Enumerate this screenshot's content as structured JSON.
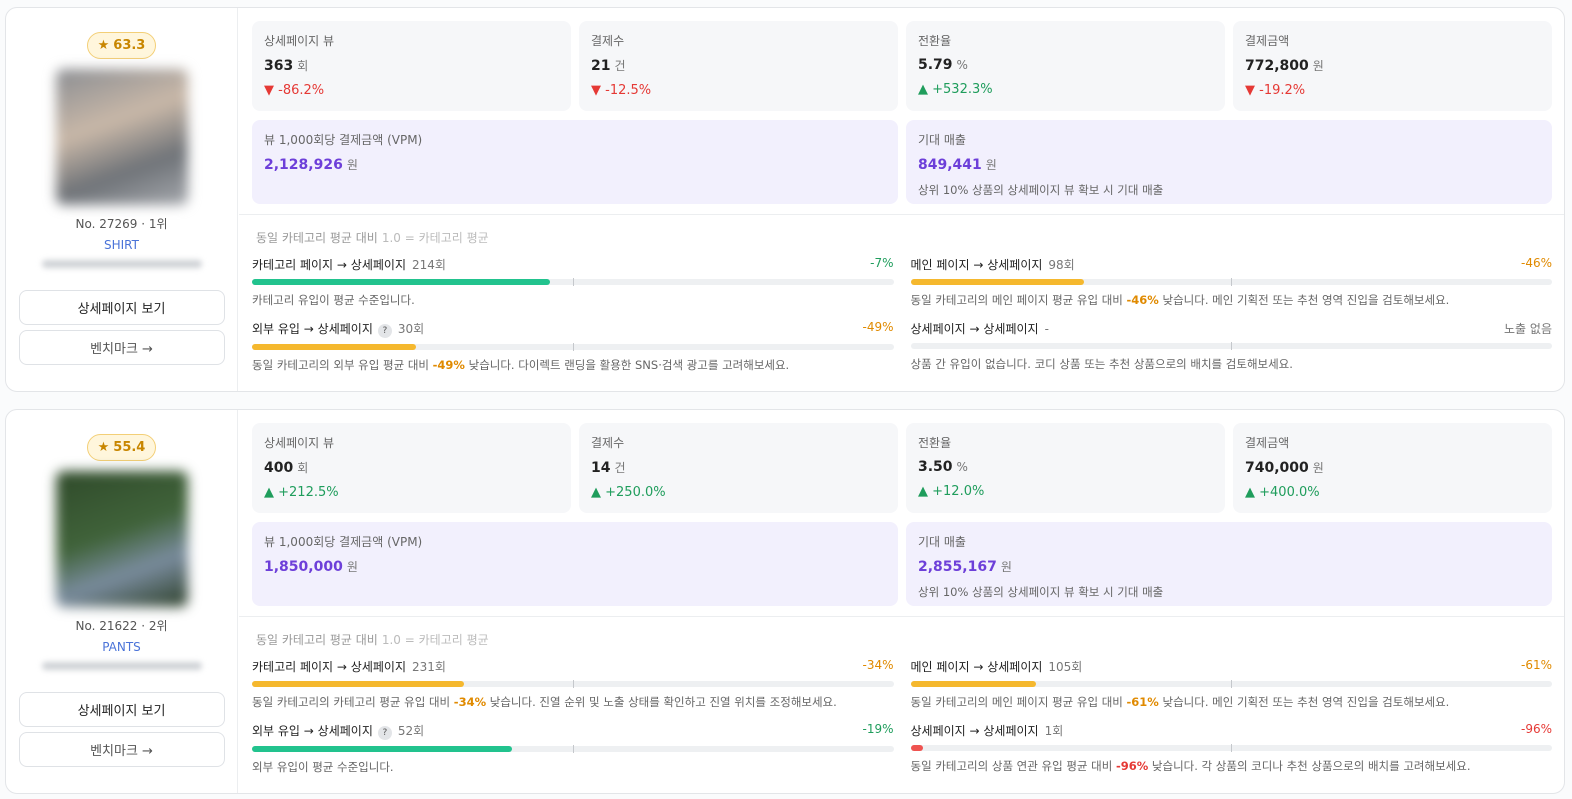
{
  "section_title": "동일 카테고리 평균 대비",
  "section_note": "1.0 = 카테고리 평균",
  "detail_button": "상세페이지 보기",
  "benchmark_button": "벤치마크 →",
  "products": [
    {
      "score": "63.3",
      "no": "No. 27269 · 1위",
      "category": "SHIRT",
      "metrics": [
        {
          "label": "상세페이지 뷰",
          "value": "363",
          "unit": "회",
          "change": "-86.2%",
          "trend": "down"
        },
        {
          "label": "결제수",
          "value": "21",
          "unit": "건",
          "change": "-12.5%",
          "trend": "down"
        },
        {
          "label": "전환율",
          "value": "5.79",
          "unit": "%",
          "change": "+532.3%",
          "trend": "up"
        },
        {
          "label": "결제금액",
          "value": "772,800",
          "unit": "원",
          "change": "-19.2%",
          "trend": "down"
        }
      ],
      "vpm": {
        "label": "뷰 1,000회당 결제금액 (VPM)",
        "value": "2,128,926",
        "unit": "원"
      },
      "expected": {
        "label": "기대 매출",
        "value": "849,441",
        "unit": "원",
        "note": "상위 10% 상품의 상세페이지 뷰 확보 시 기대 매출"
      },
      "flows": [
        {
          "name": "카테고리 페이지 → 상세페이지",
          "count": "214회",
          "diff": -7,
          "diff_label": "-7%",
          "color": "#22c38e",
          "msg": [
            {
              "text": "카테고리 유입이 평균 수준입니다."
            }
          ]
        },
        {
          "name": "메인 페이지 → 상세페이지",
          "count": "98회",
          "diff": -46,
          "diff_label": "-46%",
          "color": "#f5b82e",
          "msg": [
            {
              "text": "동일 카테고리의 메인 페이지 평균 유입 대비 "
            },
            {
              "text": "-46%",
              "em": true
            },
            {
              "text": " 낮습니다. 메인 기획전 또는 추천 영역 진입을 검토해보세요."
            }
          ]
        },
        {
          "name": "외부 유입 → 상세페이지",
          "help": "?",
          "count": "30회",
          "diff": -49,
          "diff_label": "-49%",
          "color": "#f5b82e",
          "msg": [
            {
              "text": "동일 카테고리의 외부 유입 평균 대비 "
            },
            {
              "text": "-49%",
              "em": true
            },
            {
              "text": " 낮습니다. 다이렉트 랜딩을 활용한 SNS·검색 광고를 고려해보세요."
            }
          ]
        },
        {
          "name": "상세페이지 → 상세페이지",
          "count": "-",
          "diff": null,
          "diff_label": "노출 없음",
          "color": "#888888",
          "msg": [
            {
              "text": "상품 간 유입이 없습니다. 코디 상품 또는 추천 상품으로의 배치를 검토해보세요."
            }
          ]
        }
      ]
    },
    {
      "score": "55.4",
      "no": "No. 21622 · 2위",
      "category": "PANTS",
      "metrics": [
        {
          "label": "상세페이지 뷰",
          "value": "400",
          "unit": "회",
          "change": "+212.5%",
          "trend": "up"
        },
        {
          "label": "결제수",
          "value": "14",
          "unit": "건",
          "change": "+250.0%",
          "trend": "up"
        },
        {
          "label": "전환율",
          "value": "3.50",
          "unit": "%",
          "change": "+12.0%",
          "trend": "up"
        },
        {
          "label": "결제금액",
          "value": "740,000",
          "unit": "원",
          "change": "+400.0%",
          "trend": "up"
        }
      ],
      "vpm": {
        "label": "뷰 1,000회당 결제금액 (VPM)",
        "value": "1,850,000",
        "unit": "원"
      },
      "expected": {
        "label": "기대 매출",
        "value": "2,855,167",
        "unit": "원",
        "note": "상위 10% 상품의 상세페이지 뷰 확보 시 기대 매출"
      },
      "flows": [
        {
          "name": "카테고리 페이지 → 상세페이지",
          "count": "231회",
          "diff": -34,
          "diff_label": "-34%",
          "color": "#f5b82e",
          "msg": [
            {
              "text": "동일 카테고리의 카테고리 평균 유입 대비 "
            },
            {
              "text": "-34%",
              "em": true
            },
            {
              "text": " 낮습니다. 진열 순위 및 노출 상태를 확인하고 진열 위치를 조정해보세요."
            }
          ]
        },
        {
          "name": "메인 페이지 → 상세페이지",
          "count": "105회",
          "diff": -61,
          "diff_label": "-61%",
          "color": "#f5b82e",
          "msg": [
            {
              "text": "동일 카테고리의 메인 페이지 평균 유입 대비 "
            },
            {
              "text": "-61%",
              "em": true
            },
            {
              "text": " 낮습니다. 메인 기획전 또는 추천 영역 진입을 검토해보세요."
            }
          ]
        },
        {
          "name": "외부 유입 → 상세페이지",
          "help": "?",
          "count": "52회",
          "diff": -19,
          "diff_label": "-19%",
          "color": "#22c38e",
          "msg": [
            {
              "text": "외부 유입이 평균 수준입니다."
            }
          ]
        },
        {
          "name": "상세페이지 → 상세페이지",
          "count": "1회",
          "diff": -96,
          "diff_label": "-96%",
          "color": "#ef5350",
          "msg": [
            {
              "text": "동일 카테고리의 상품 연관 유입 평균 대비 "
            },
            {
              "text": "-96%",
              "em": true
            },
            {
              "text": " 낮습니다. 각 상품의 코디나 추천 상품으로의 배치를 고려해보세요."
            }
          ]
        }
      ]
    }
  ]
}
